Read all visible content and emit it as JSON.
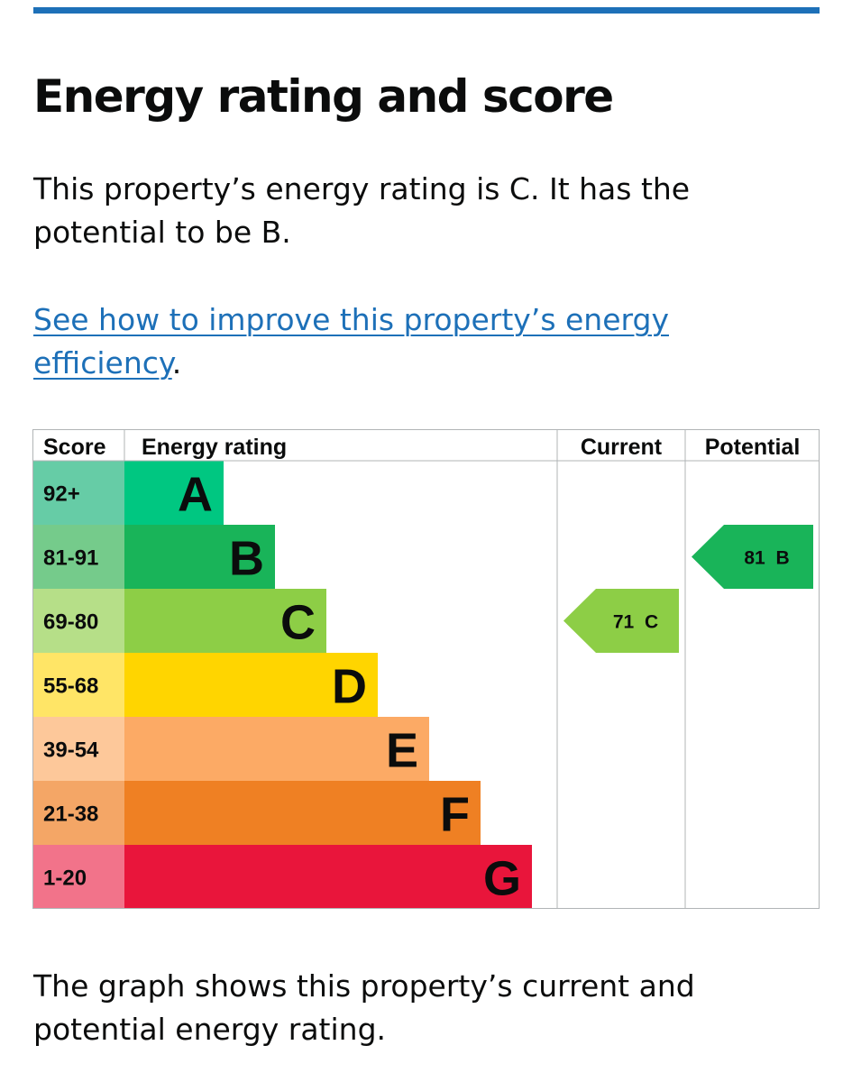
{
  "heading": "Energy rating and score",
  "summary": "This property’s energy rating is C. It has the potential to be B.",
  "improve_link": {
    "text": "See how to improve this property’s energy efficiency",
    "trailing": "."
  },
  "caption": "The graph shows this property’s current and potential energy rating.",
  "colors": {
    "link": "#1d70b8",
    "rule": "#1d70b8"
  },
  "chart_data": {
    "type": "bar",
    "columns": [
      "Score",
      "Energy rating",
      "Current",
      "Potential"
    ],
    "bands": [
      {
        "letter": "A",
        "score": "92+",
        "color": "#00c781",
        "score_bg": "#66cca6",
        "letter_color": "#0b0c0c"
      },
      {
        "letter": "B",
        "score": "81-91",
        "color": "#19b459",
        "score_bg": "#75cb8b",
        "letter_color": "#0b0c0c"
      },
      {
        "letter": "C",
        "score": "69-80",
        "color": "#8dce46",
        "score_bg": "#b6df88",
        "letter_color": "#0b0c0c"
      },
      {
        "letter": "D",
        "score": "55-68",
        "color": "#ffd500",
        "score_bg": "#ffe566",
        "letter_color": "#0b0c0c"
      },
      {
        "letter": "E",
        "score": "39-54",
        "color": "#fcaa65",
        "score_bg": "#fdc89a",
        "letter_color": "#0b0c0c"
      },
      {
        "letter": "F",
        "score": "21-38",
        "color": "#ef8023",
        "score_bg": "#f4a666",
        "letter_color": "#0b0c0c"
      },
      {
        "letter": "G",
        "score": "1-20",
        "color": "#e9153b",
        "score_bg": "#f2738a",
        "letter_color": "#0b0c0c"
      }
    ],
    "current": {
      "score": 71,
      "band": "C",
      "label": "71 C"
    },
    "potential": {
      "score": 81,
      "band": "B",
      "label": "81 B"
    }
  }
}
